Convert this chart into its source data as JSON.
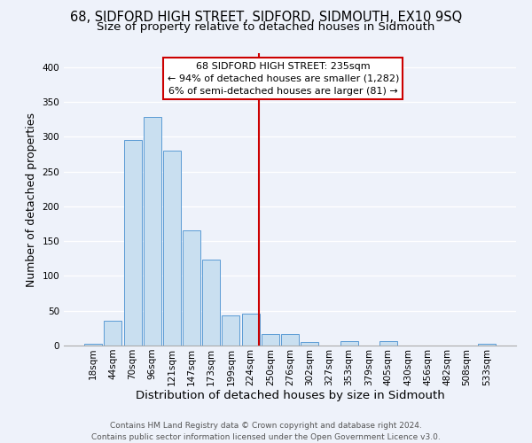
{
  "title": "68, SIDFORD HIGH STREET, SIDFORD, SIDMOUTH, EX10 9SQ",
  "subtitle": "Size of property relative to detached houses in Sidmouth",
  "xlabel": "Distribution of detached houses by size in Sidmouth",
  "ylabel": "Number of detached properties",
  "bin_labels": [
    "18sqm",
    "44sqm",
    "70sqm",
    "96sqm",
    "121sqm",
    "147sqm",
    "173sqm",
    "199sqm",
    "224sqm",
    "250sqm",
    "276sqm",
    "302sqm",
    "327sqm",
    "353sqm",
    "379sqm",
    "405sqm",
    "430sqm",
    "456sqm",
    "482sqm",
    "508sqm",
    "533sqm"
  ],
  "bar_heights": [
    3,
    36,
    295,
    328,
    280,
    165,
    123,
    43,
    46,
    16,
    17,
    5,
    0,
    7,
    0,
    6,
    0,
    0,
    0,
    0,
    2
  ],
  "bar_color": "#c9dff0",
  "bar_edge_color": "#5b9bd5",
  "vline_x_index": 8.4,
  "annotation_title": "68 SIDFORD HIGH STREET: 235sqm",
  "annotation_line1": "← 94% of detached houses are smaller (1,282)",
  "annotation_line2": "6% of semi-detached houses are larger (81) →",
  "annotation_box_color": "#ffffff",
  "annotation_box_edgecolor": "#cc0000",
  "vline_color": "#cc0000",
  "footer_line1": "Contains HM Land Registry data © Crown copyright and database right 2024.",
  "footer_line2": "Contains public sector information licensed under the Open Government Licence v3.0.",
  "background_color": "#eef2fa",
  "ylim": [
    0,
    420
  ],
  "yticks": [
    0,
    50,
    100,
    150,
    200,
    250,
    300,
    350,
    400
  ],
  "title_fontsize": 10.5,
  "subtitle_fontsize": 9.5,
  "axis_label_fontsize": 9,
  "tick_fontsize": 7.5,
  "annotation_fontsize": 8,
  "footer_fontsize": 6.5
}
